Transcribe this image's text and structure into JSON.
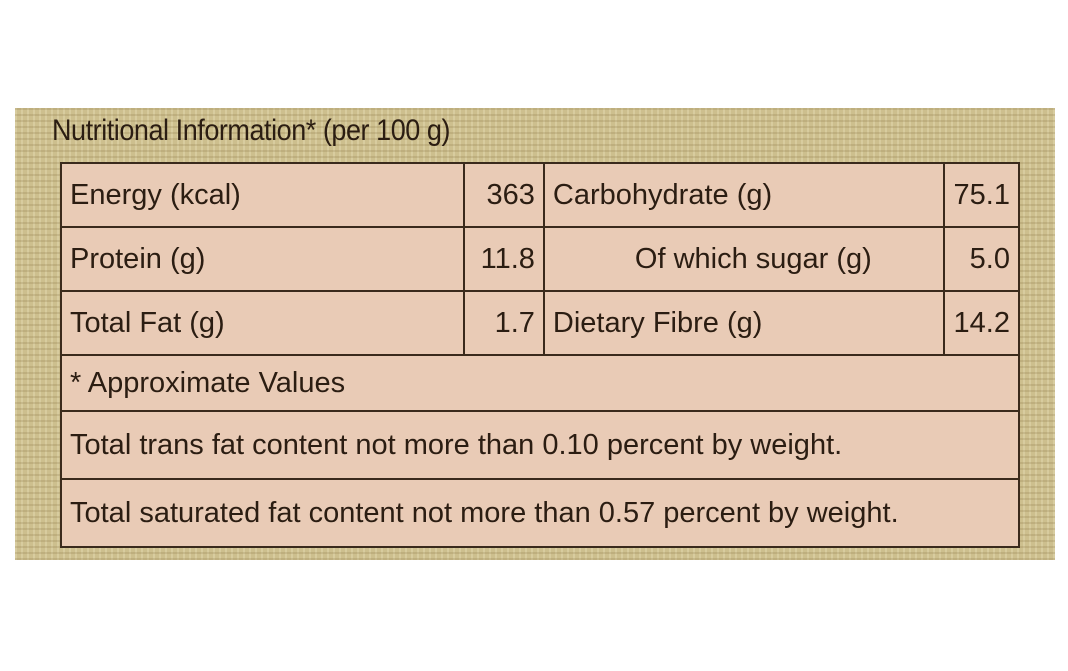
{
  "header": {
    "title": "Nutritional Information* (per 100 g)"
  },
  "table": {
    "rows": [
      [
        "Energy (kcal)",
        "363",
        "Carbohydrate (g)",
        "75.1"
      ],
      [
        "Protein (g)",
        "11.8",
        "Of which sugar (g)",
        "5.0"
      ],
      [
        "Total Fat (g)",
        "1.7",
        "Dietary Fibre (g)",
        "14.2"
      ]
    ],
    "note": "* Approximate Values",
    "statements": [
      "Total trans fat content not more than 0.10 percent by weight.",
      "Total saturated fat content not more than 0.57 percent by weight."
    ]
  }
}
